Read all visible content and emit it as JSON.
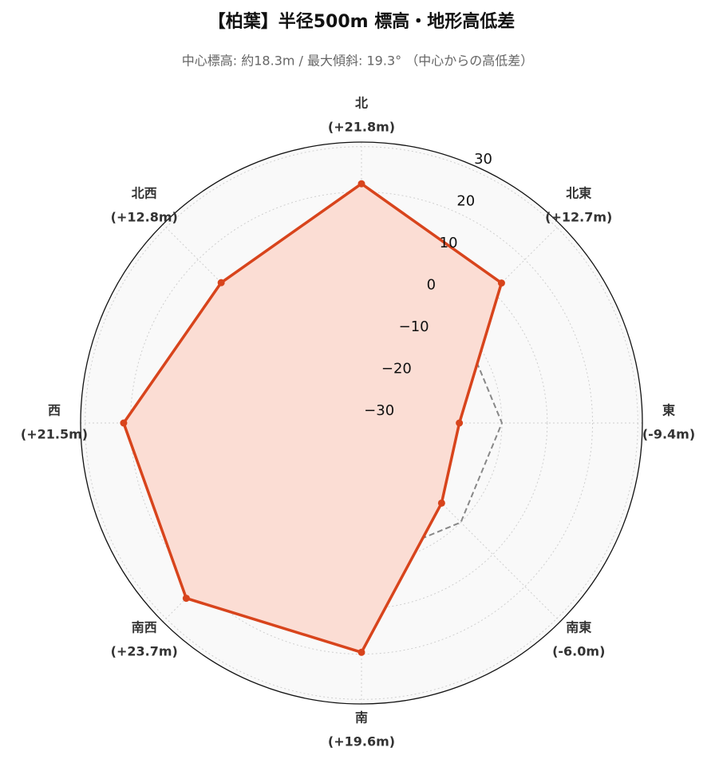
{
  "chart_data": {
    "type": "radar",
    "title": "【柏葉】半径500m 標高・地形高低差",
    "subtitle": "中心標高: 約18.3m / 最大傾斜: 19.3° （中心からの高低差）",
    "categories": [
      "北",
      "北東",
      "東",
      "南東",
      "南",
      "南西",
      "西",
      "北西"
    ],
    "series": [
      {
        "color": "#d8441c",
        "fill": "#fbddd4",
        "values": [
          21.8,
          12.7,
          -9.4,
          -6.0,
          19.6,
          23.7,
          21.5,
          12.8
        ],
        "value_labels": [
          "(+21.8m)",
          "(+12.7m)",
          "(-9.4m)",
          "(-6.0m)",
          "(+19.6m)",
          "(+23.7m)",
          "(+21.5m)",
          "(+12.8m)"
        ]
      }
    ],
    "reference_value": 0,
    "ylim": [
      -31,
      31
    ],
    "yticks": [
      {
        "value": -30,
        "label": "−30"
      },
      {
        "value": -20,
        "label": "−20"
      },
      {
        "value": -10,
        "label": "−10"
      },
      0,
      10,
      20,
      30
    ],
    "grid": true
  }
}
